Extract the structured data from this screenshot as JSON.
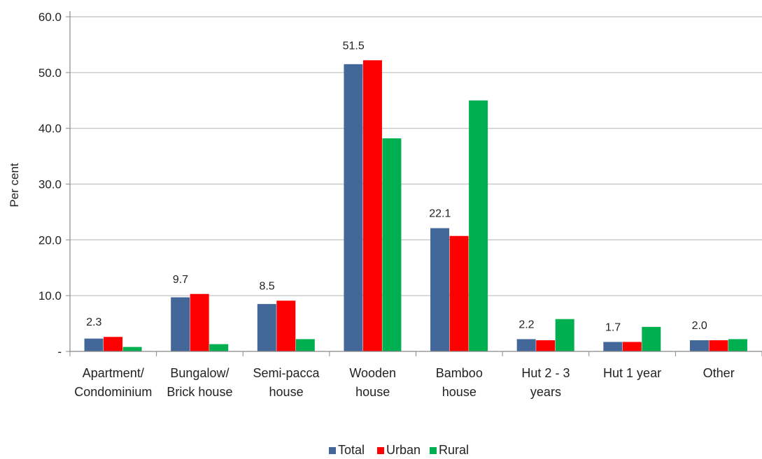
{
  "chart_data": {
    "type": "bar",
    "ylabel": "Per cent",
    "ylim": [
      0,
      60
    ],
    "yticks": [
      {
        "value": 0,
        "label": "-"
      },
      {
        "value": 10,
        "label": "10.0"
      },
      {
        "value": 20,
        "label": "20.0"
      },
      {
        "value": 30,
        "label": "30.0"
      },
      {
        "value": 40,
        "label": "40.0"
      },
      {
        "value": 50,
        "label": "50.0"
      },
      {
        "value": 60,
        "label": "60.0"
      }
    ],
    "grid": true,
    "legend_position": "bottom-center",
    "categories": [
      [
        "Apartment/",
        "Condominium"
      ],
      [
        "Bungalow/",
        "Brick house"
      ],
      [
        "Semi-pacca",
        "house"
      ],
      [
        "Wooden",
        "house"
      ],
      [
        "Bamboo",
        "house"
      ],
      [
        "Hut 2 - 3",
        "years"
      ],
      [
        "Hut 1 year"
      ],
      [
        "Other"
      ]
    ],
    "series": [
      {
        "name": "Total",
        "color": "#44679a",
        "values": [
          2.3,
          9.7,
          8.5,
          51.5,
          22.1,
          2.2,
          1.7,
          2.0
        ]
      },
      {
        "name": "Urban",
        "color": "#ff0000",
        "values": [
          2.6,
          10.3,
          9.1,
          52.2,
          20.7,
          2.0,
          1.7,
          2.0
        ]
      },
      {
        "name": "Rural",
        "color": "#00b050",
        "values": [
          0.8,
          1.3,
          2.2,
          38.2,
          45.0,
          5.8,
          4.4,
          2.2
        ]
      }
    ],
    "data_labels": [
      "2.3",
      "9.7",
      "8.5",
      "51.5",
      "22.1",
      "2.2",
      "1.7",
      "2.0"
    ]
  }
}
